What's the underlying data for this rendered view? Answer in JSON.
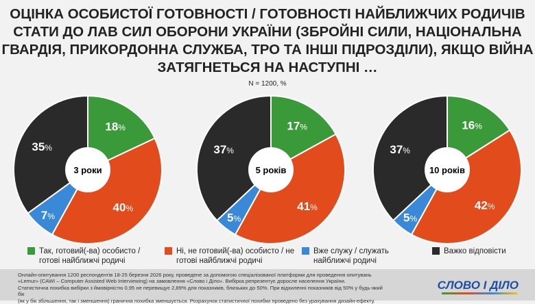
{
  "title": "ОЦІНКА ОСОБИСТОЇ ГОТОВНОСТІ / ГОТОВНОСТІ НАЙБЛИЖЧИХ РОДИЧІВ СТАТИ ДО ЛАВ СИЛ ОБОРОНИ УКРАЇНИ (ЗБРОЙНІ СИЛИ, НАЦІОНАЛЬНА ГВАРДІЯ, ПРИКОРДОННА СЛУЖБА, ТРО ТА ІНШІ ПІДРОЗДІЛИ), ЯКЩО ВІЙНА ЗАТЯГНЕТЬСЯ НА НАСТУПНІ …",
  "sample": "N = 1200, %",
  "chart_data": {
    "type": "pie",
    "series_names": [
      "Так, готовий(-ва) особисто / готові найближчі родичі",
      "Ні, не готовий(-ва) особисто / не готові найближчі родичі",
      "Вже служу / служать найближчі родичі",
      "Важко відповісти"
    ],
    "colors": [
      "#3a9a3a",
      "#e24b1c",
      "#3a88d8",
      "#2a2a2a"
    ],
    "charts": [
      {
        "label": "3 роки",
        "values": [
          18,
          40,
          7,
          35
        ]
      },
      {
        "label": "5 років",
        "values": [
          17,
          41,
          5,
          37
        ]
      },
      {
        "label": "10 років",
        "values": [
          16,
          42,
          5,
          37
        ]
      }
    ]
  },
  "footer": {
    "note": "Онлайн-опитування 1200 респондентів 18-25 березня 2026 року, проведене за допомогою спеціалізованої платформи для проведення опитувань\n«Lemur» (CAWI – Computer Assisted Web Interviewing) на замовлення «Слово і Діло». Вибірка репрезентує доросле населення України.\nСтатистична похибка вибірки з ймовірністю 0,95 не перевищує 2,89% для показників, близьких до 50%. При відхиленні показників від 50% у будь-який бік\n(як у бік збільшення, так і зменшення) гранична похибка зменшується. Розрахунок статистичної похибки проведено без урахування дизайн-ефекту.",
    "logo": "СЛОВО І ДІЛО"
  }
}
